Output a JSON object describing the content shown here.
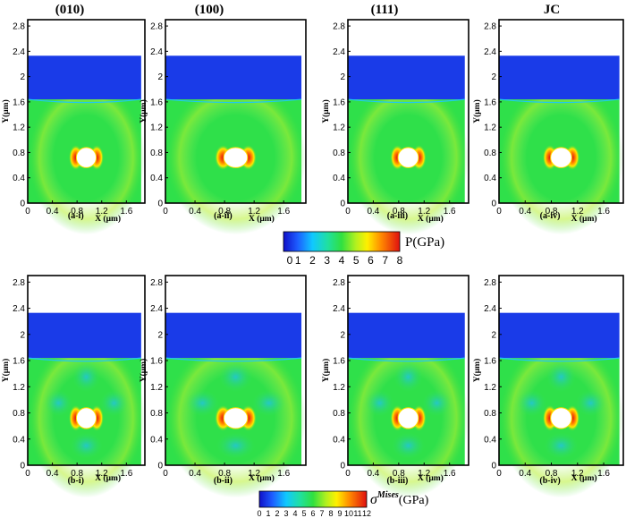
{
  "figure": {
    "column_titles": [
      "(010)",
      "(100)",
      "(111)",
      "JC"
    ],
    "y_axis_label": "Y(μm)",
    "x_axis_label": "X (μm)",
    "y_ticks": [
      "0",
      "0.4",
      "0.8",
      "1.2",
      "1.6",
      "2",
      "2.4",
      "2.8"
    ],
    "x_ticks": [
      "0",
      "0.4",
      "0.8",
      "1.2",
      "1.6"
    ],
    "rows": [
      {
        "id": "pressure",
        "panel_labels": [
          "(a-i)",
          "(a-ii)",
          "(a-iii)",
          "(a-iv)"
        ],
        "colorbar": {
          "title": "P(GPa)",
          "ticks": [
            "0",
            "1",
            "2",
            "3",
            "4",
            "5",
            "6",
            "7",
            "8"
          ],
          "range": [
            0,
            8
          ]
        }
      },
      {
        "id": "mises",
        "panel_labels": [
          "(b-i)",
          "(b-ii)",
          "(b-iii)",
          "(b-iv)"
        ],
        "colorbar": {
          "title": "Mises",
          "title_symbol": "σ",
          "title_unit": "(GPa)",
          "ticks": [
            "0",
            "1",
            "2",
            "3",
            "4",
            "5",
            "6",
            "7",
            "8",
            "9",
            "10",
            "11",
            "12"
          ],
          "range": [
            0,
            12
          ]
        }
      }
    ],
    "colors": {
      "flyer": "#1a3be8",
      "field_green": "#2fe04a",
      "hot_red": "#e21b1b",
      "void_fill": "#ffffff",
      "frame": "#000000"
    }
  }
}
